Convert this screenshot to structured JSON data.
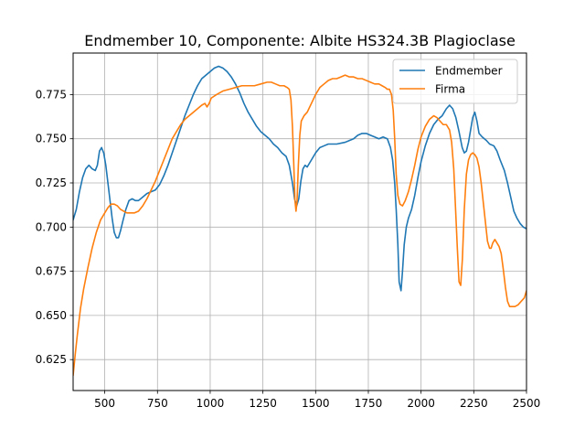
{
  "chart_data": {
    "type": "line",
    "title": "Endmember 10, Componente: Albite HS324.3B Plagioclase",
    "xlabel": "",
    "ylabel": "",
    "xlim": [
      350,
      2500
    ],
    "ylim": [
      0.6075,
      0.7985
    ],
    "grid": true,
    "legend_position": "top-right",
    "xticks": [
      500,
      750,
      1000,
      1250,
      1500,
      1750,
      2000,
      2250,
      2500
    ],
    "xtick_labels": [
      "500",
      "750",
      "1000",
      "1250",
      "1500",
      "1750",
      "2000",
      "2250",
      "2500"
    ],
    "yticks": [
      0.625,
      0.65,
      0.675,
      0.7,
      0.725,
      0.75,
      0.775
    ],
    "ytick_labels": [
      "0.625",
      "0.650",
      "0.675",
      "0.700",
      "0.725",
      "0.750",
      "0.775"
    ],
    "series": [
      {
        "name": "Endmember",
        "color": "#1f77b4",
        "points": [
          [
            350,
            0.704
          ],
          [
            365,
            0.71
          ],
          [
            380,
            0.72
          ],
          [
            395,
            0.728
          ],
          [
            410,
            0.733
          ],
          [
            425,
            0.735
          ],
          [
            440,
            0.733
          ],
          [
            455,
            0.732
          ],
          [
            465,
            0.735
          ],
          [
            475,
            0.743
          ],
          [
            485,
            0.745
          ],
          [
            495,
            0.742
          ],
          [
            505,
            0.735
          ],
          [
            515,
            0.725
          ],
          [
            525,
            0.715
          ],
          [
            535,
            0.705
          ],
          [
            545,
            0.697
          ],
          [
            555,
            0.694
          ],
          [
            565,
            0.694
          ],
          [
            575,
            0.698
          ],
          [
            585,
            0.703
          ],
          [
            600,
            0.71
          ],
          [
            615,
            0.715
          ],
          [
            630,
            0.716
          ],
          [
            645,
            0.715
          ],
          [
            660,
            0.715
          ],
          [
            680,
            0.717
          ],
          [
            700,
            0.719
          ],
          [
            720,
            0.72
          ],
          [
            740,
            0.721
          ],
          [
            760,
            0.724
          ],
          [
            780,
            0.729
          ],
          [
            800,
            0.735
          ],
          [
            820,
            0.742
          ],
          [
            840,
            0.749
          ],
          [
            860,
            0.756
          ],
          [
            880,
            0.763
          ],
          [
            900,
            0.769
          ],
          [
            920,
            0.775
          ],
          [
            940,
            0.78
          ],
          [
            960,
            0.784
          ],
          [
            980,
            0.786
          ],
          [
            1000,
            0.788
          ],
          [
            1020,
            0.79
          ],
          [
            1040,
            0.791
          ],
          [
            1060,
            0.79
          ],
          [
            1080,
            0.788
          ],
          [
            1100,
            0.785
          ],
          [
            1120,
            0.781
          ],
          [
            1140,
            0.776
          ],
          [
            1160,
            0.77
          ],
          [
            1180,
            0.765
          ],
          [
            1200,
            0.761
          ],
          [
            1220,
            0.757
          ],
          [
            1240,
            0.754
          ],
          [
            1260,
            0.752
          ],
          [
            1280,
            0.75
          ],
          [
            1300,
            0.747
          ],
          [
            1320,
            0.745
          ],
          [
            1340,
            0.742
          ],
          [
            1360,
            0.74
          ],
          [
            1375,
            0.735
          ],
          [
            1390,
            0.725
          ],
          [
            1400,
            0.716
          ],
          [
            1410,
            0.712
          ],
          [
            1420,
            0.716
          ],
          [
            1430,
            0.726
          ],
          [
            1440,
            0.733
          ],
          [
            1450,
            0.735
          ],
          [
            1460,
            0.734
          ],
          [
            1480,
            0.738
          ],
          [
            1500,
            0.742
          ],
          [
            1520,
            0.745
          ],
          [
            1540,
            0.746
          ],
          [
            1560,
            0.747
          ],
          [
            1600,
            0.747
          ],
          [
            1640,
            0.748
          ],
          [
            1680,
            0.75
          ],
          [
            1700,
            0.752
          ],
          [
            1720,
            0.753
          ],
          [
            1740,
            0.753
          ],
          [
            1760,
            0.752
          ],
          [
            1780,
            0.751
          ],
          [
            1800,
            0.75
          ],
          [
            1820,
            0.751
          ],
          [
            1840,
            0.75
          ],
          [
            1855,
            0.745
          ],
          [
            1865,
            0.738
          ],
          [
            1875,
            0.725
          ],
          [
            1882,
            0.71
          ],
          [
            1890,
            0.69
          ],
          [
            1896,
            0.669
          ],
          [
            1905,
            0.664
          ],
          [
            1912,
            0.675
          ],
          [
            1920,
            0.69
          ],
          [
            1930,
            0.7
          ],
          [
            1940,
            0.705
          ],
          [
            1955,
            0.71
          ],
          [
            1970,
            0.718
          ],
          [
            1985,
            0.728
          ],
          [
            2000,
            0.737
          ],
          [
            2020,
            0.746
          ],
          [
            2040,
            0.753
          ],
          [
            2060,
            0.758
          ],
          [
            2080,
            0.761
          ],
          [
            2100,
            0.763
          ],
          [
            2120,
            0.767
          ],
          [
            2135,
            0.769
          ],
          [
            2150,
            0.767
          ],
          [
            2165,
            0.762
          ],
          [
            2180,
            0.754
          ],
          [
            2195,
            0.745
          ],
          [
            2205,
            0.742
          ],
          [
            2215,
            0.743
          ],
          [
            2225,
            0.748
          ],
          [
            2235,
            0.755
          ],
          [
            2245,
            0.762
          ],
          [
            2255,
            0.765
          ],
          [
            2265,
            0.76
          ],
          [
            2275,
            0.753
          ],
          [
            2290,
            0.751
          ],
          [
            2310,
            0.749
          ],
          [
            2325,
            0.747
          ],
          [
            2345,
            0.746
          ],
          [
            2360,
            0.743
          ],
          [
            2375,
            0.738
          ],
          [
            2395,
            0.732
          ],
          [
            2410,
            0.725
          ],
          [
            2425,
            0.717
          ],
          [
            2440,
            0.709
          ],
          [
            2455,
            0.705
          ],
          [
            2470,
            0.702
          ],
          [
            2485,
            0.7
          ],
          [
            2500,
            0.699
          ]
        ]
      },
      {
        "name": "Firma",
        "color": "#ff7f0e",
        "points": [
          [
            350,
            0.616
          ],
          [
            360,
            0.628
          ],
          [
            370,
            0.639
          ],
          [
            385,
            0.654
          ],
          [
            400,
            0.665
          ],
          [
            420,
            0.677
          ],
          [
            440,
            0.688
          ],
          [
            460,
            0.697
          ],
          [
            480,
            0.704
          ],
          [
            500,
            0.708
          ],
          [
            515,
            0.711
          ],
          [
            530,
            0.713
          ],
          [
            545,
            0.713
          ],
          [
            560,
            0.712
          ],
          [
            575,
            0.71
          ],
          [
            590,
            0.709
          ],
          [
            605,
            0.708
          ],
          [
            620,
            0.708
          ],
          [
            640,
            0.708
          ],
          [
            660,
            0.709
          ],
          [
            680,
            0.712
          ],
          [
            700,
            0.716
          ],
          [
            720,
            0.721
          ],
          [
            740,
            0.726
          ],
          [
            760,
            0.732
          ],
          [
            780,
            0.738
          ],
          [
            800,
            0.744
          ],
          [
            820,
            0.75
          ],
          [
            840,
            0.754
          ],
          [
            860,
            0.758
          ],
          [
            880,
            0.761
          ],
          [
            900,
            0.763
          ],
          [
            920,
            0.765
          ],
          [
            940,
            0.767
          ],
          [
            960,
            0.769
          ],
          [
            975,
            0.77
          ],
          [
            985,
            0.768
          ],
          [
            995,
            0.77
          ],
          [
            1005,
            0.773
          ],
          [
            1030,
            0.775
          ],
          [
            1060,
            0.777
          ],
          [
            1090,
            0.778
          ],
          [
            1120,
            0.779
          ],
          [
            1150,
            0.78
          ],
          [
            1180,
            0.78
          ],
          [
            1210,
            0.78
          ],
          [
            1240,
            0.781
          ],
          [
            1270,
            0.782
          ],
          [
            1290,
            0.782
          ],
          [
            1310,
            0.781
          ],
          [
            1330,
            0.78
          ],
          [
            1350,
            0.78
          ],
          [
            1365,
            0.779
          ],
          [
            1375,
            0.778
          ],
          [
            1383,
            0.772
          ],
          [
            1390,
            0.757
          ],
          [
            1396,
            0.737
          ],
          [
            1402,
            0.715
          ],
          [
            1407,
            0.709
          ],
          [
            1412,
            0.715
          ],
          [
            1418,
            0.735
          ],
          [
            1425,
            0.752
          ],
          [
            1432,
            0.76
          ],
          [
            1445,
            0.763
          ],
          [
            1460,
            0.765
          ],
          [
            1480,
            0.77
          ],
          [
            1500,
            0.775
          ],
          [
            1520,
            0.779
          ],
          [
            1540,
            0.781
          ],
          [
            1560,
            0.783
          ],
          [
            1580,
            0.784
          ],
          [
            1600,
            0.784
          ],
          [
            1620,
            0.785
          ],
          [
            1640,
            0.786
          ],
          [
            1660,
            0.785
          ],
          [
            1680,
            0.785
          ],
          [
            1700,
            0.784
          ],
          [
            1720,
            0.784
          ],
          [
            1740,
            0.783
          ],
          [
            1760,
            0.782
          ],
          [
            1780,
            0.781
          ],
          [
            1800,
            0.781
          ],
          [
            1815,
            0.78
          ],
          [
            1830,
            0.779
          ],
          [
            1840,
            0.778
          ],
          [
            1850,
            0.778
          ],
          [
            1860,
            0.775
          ],
          [
            1868,
            0.766
          ],
          [
            1875,
            0.75
          ],
          [
            1882,
            0.73
          ],
          [
            1890,
            0.718
          ],
          [
            1900,
            0.713
          ],
          [
            1912,
            0.712
          ],
          [
            1925,
            0.715
          ],
          [
            1940,
            0.72
          ],
          [
            1955,
            0.727
          ],
          [
            1970,
            0.735
          ],
          [
            1985,
            0.744
          ],
          [
            2000,
            0.751
          ],
          [
            2020,
            0.757
          ],
          [
            2040,
            0.761
          ],
          [
            2060,
            0.763
          ],
          [
            2075,
            0.762
          ],
          [
            2090,
            0.76
          ],
          [
            2105,
            0.758
          ],
          [
            2120,
            0.758
          ],
          [
            2135,
            0.755
          ],
          [
            2145,
            0.748
          ],
          [
            2155,
            0.733
          ],
          [
            2163,
            0.712
          ],
          [
            2172,
            0.688
          ],
          [
            2180,
            0.669
          ],
          [
            2188,
            0.667
          ],
          [
            2196,
            0.682
          ],
          [
            2205,
            0.71
          ],
          [
            2215,
            0.73
          ],
          [
            2225,
            0.738
          ],
          [
            2235,
            0.741
          ],
          [
            2245,
            0.742
          ],
          [
            2255,
            0.741
          ],
          [
            2265,
            0.739
          ],
          [
            2275,
            0.734
          ],
          [
            2285,
            0.725
          ],
          [
            2295,
            0.714
          ],
          [
            2305,
            0.703
          ],
          [
            2315,
            0.692
          ],
          [
            2325,
            0.688
          ],
          [
            2332,
            0.688
          ],
          [
            2340,
            0.691
          ],
          [
            2350,
            0.693
          ],
          [
            2360,
            0.691
          ],
          [
            2370,
            0.689
          ],
          [
            2380,
            0.685
          ],
          [
            2390,
            0.676
          ],
          [
            2400,
            0.666
          ],
          [
            2410,
            0.658
          ],
          [
            2420,
            0.655
          ],
          [
            2430,
            0.655
          ],
          [
            2445,
            0.655
          ],
          [
            2460,
            0.656
          ],
          [
            2475,
            0.658
          ],
          [
            2490,
            0.66
          ],
          [
            2500,
            0.664
          ]
        ]
      }
    ]
  }
}
